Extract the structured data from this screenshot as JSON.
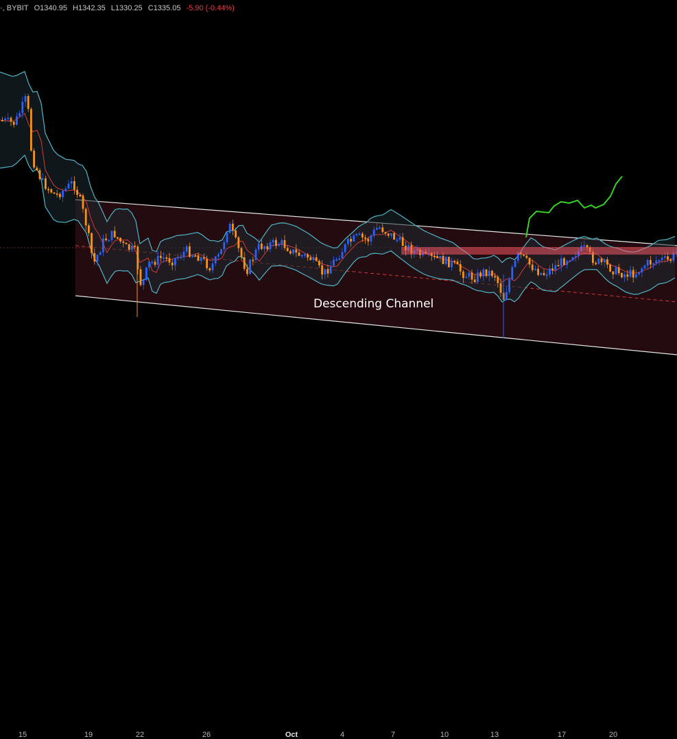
{
  "header": {
    "symbol_suffix": "·, BYBIT",
    "open": "O1340.95",
    "high": "H1342.35",
    "low": "L1330.25",
    "close": "C1335.05",
    "change": "-5.90 (-0.44%)"
  },
  "annotation": "Descending Channel",
  "colors": {
    "up": "#2962ff",
    "down": "#f7931a",
    "band": "#4fb6c9",
    "basis": "#d23a3a",
    "channel_line": "#e8e8e8",
    "channel_fill": "#2a0d12",
    "resistance": "#f25565",
    "projection": "#36d420",
    "background": "#000000"
  },
  "chart_data": {
    "type": "candlestick",
    "x_axis": {
      "ticks": [
        "15",
        "19",
        "22",
        "26",
        "Oct",
        "4",
        "7",
        "10",
        "13",
        "17",
        "20"
      ]
    },
    "series": [],
    "overlays": [
      "bollinger_bands",
      "descending_channel",
      "resistance_zone",
      "projected_path"
    ]
  }
}
